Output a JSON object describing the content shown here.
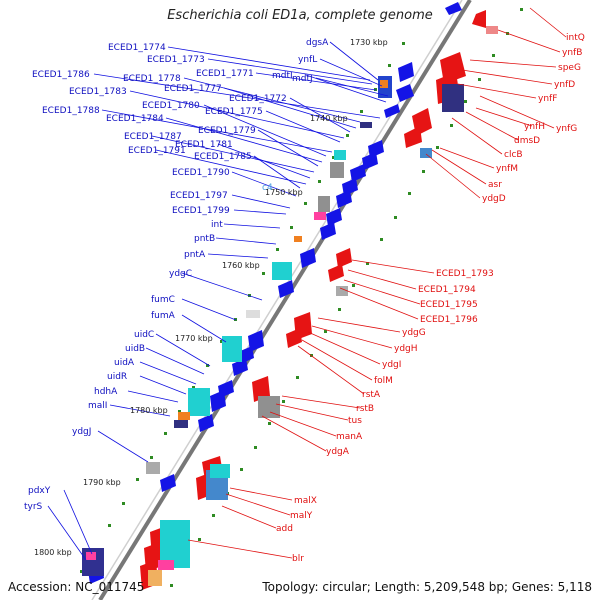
{
  "title": "Escherichia coli ED1a, complete genome",
  "accession": "Accession: NC_011745",
  "topology": "Topology: circular; Length: 5,209,548 bp; Genes: 5,118",
  "kbp_marks": [
    "1730 kbp",
    "1740 kbp",
    "1750 kbp",
    "1760 kbp",
    "1770 kbp",
    "1780 kbp",
    "1790 kbp",
    "1800 kbp"
  ],
  "ring_label": "c4",
  "left_genes": [
    "ECED1_1774",
    "ECED1_1773",
    "ECED1_1771",
    "ECED1_1786",
    "ECED1_1778",
    "ECED1_1777",
    "ECED1_1772",
    "ECED1_1783",
    "ECED1_1775",
    "ECED1_1788",
    "ECED1_1780",
    "ECED1_1784",
    "ECED1_1779",
    "ECED1_1787",
    "ECED1_1781",
    "ECED1_1791",
    "ECED1_1785",
    "ECED1_1790",
    "ECED1_1797",
    "ECED1_1799",
    "int",
    "pntB",
    "pntA",
    "ydgC",
    "fumC",
    "fumA",
    "uidC",
    "uidB",
    "uidA",
    "uidR",
    "hdhA",
    "malI",
    "ydgJ",
    "pdxY",
    "tyrS",
    "dgsA",
    "ynfL",
    "mdtJ",
    "mdtI"
  ],
  "right_genes": [
    "intQ",
    "ynfB",
    "speG",
    "ynfD",
    "ynfF",
    "ynfG",
    "ynfH",
    "dmsD",
    "clcB",
    "ynfM",
    "asr",
    "ydgD",
    "ECED1_1793",
    "ECED1_1794",
    "ECED1_1795",
    "ECED1_1796",
    "ydgG",
    "ydgH",
    "ydgI",
    "folM",
    "rstA",
    "rstB",
    "tus",
    "manA",
    "ydgA",
    "malX",
    "malY",
    "add",
    "blr"
  ],
  "colors": {
    "forward": "#1010e0",
    "reverse": "#e01010",
    "backbone": "#808080",
    "dots": "#228b22",
    "rna": "#20d0d0",
    "pseudo": "#f08020",
    "pink": "#ff40a0",
    "navy": "#303080",
    "grey": "#909090"
  }
}
